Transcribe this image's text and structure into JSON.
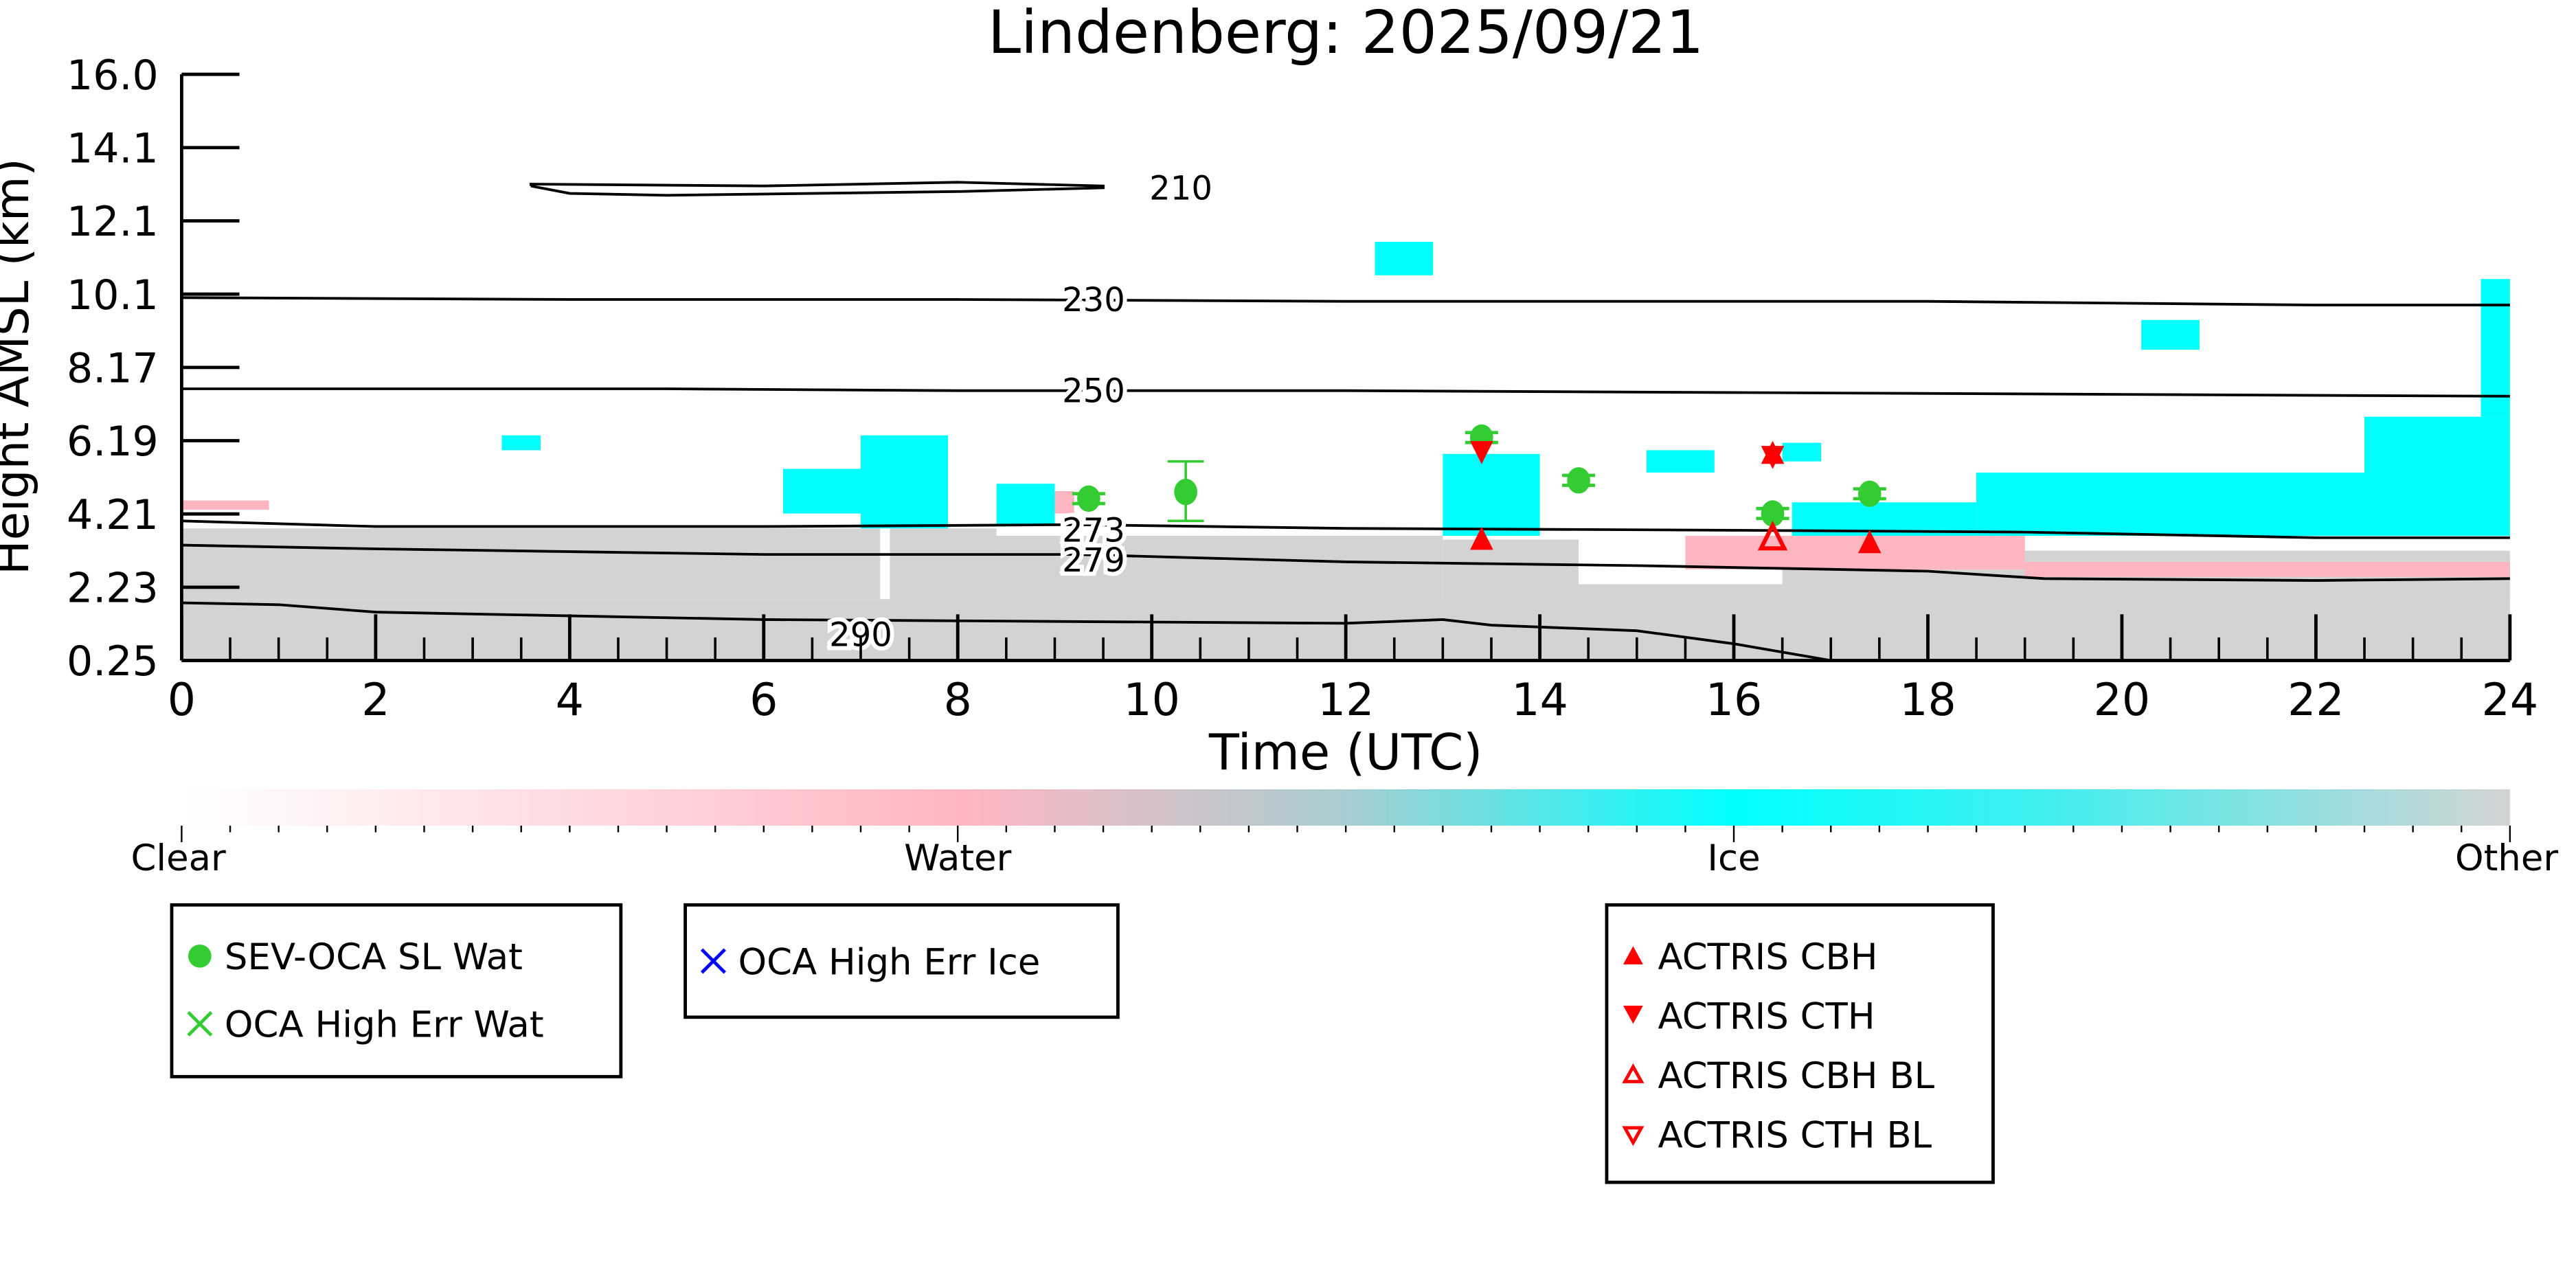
{
  "chart_data": {
    "type": "scatter",
    "title": "Lindenberg: 2025/09/21",
    "xlabel": "Time (UTC)",
    "ylabel": "Height AMSL (km)",
    "xlim": [
      0,
      24
    ],
    "ylim": [
      0.25,
      16.0
    ],
    "x_ticks": [
      "0",
      "2",
      "4",
      "6",
      "8",
      "10",
      "12",
      "14",
      "16",
      "18",
      "20",
      "22",
      "24"
    ],
    "y_ticks": [
      "0.25",
      "2.23",
      "4.21",
      "6.19",
      "8.17",
      "10.1",
      "12.1",
      "14.1",
      "16.0"
    ],
    "colorbar": {
      "labels": [
        "Clear",
        "Water",
        "Ice",
        "Other"
      ],
      "colors": [
        "#ffffff",
        "#ffb6c1",
        "#00ffff",
        "#d3d3d3"
      ]
    },
    "contours": [
      {
        "label": "210",
        "label_at": [
          10.3,
          12.95
        ],
        "points": [
          [
            3.6,
            13.0
          ],
          [
            4.0,
            12.8
          ],
          [
            5.0,
            12.75
          ],
          [
            8.0,
            12.85
          ],
          [
            9.5,
            12.95
          ],
          [
            9.5,
            13.0
          ],
          [
            8.0,
            13.1
          ],
          [
            6.0,
            13.0
          ],
          [
            3.6,
            13.05
          ],
          [
            3.6,
            13.0
          ]
        ]
      },
      {
        "label": "230",
        "label_at": [
          9.4,
          9.95
        ],
        "points": [
          [
            0,
            10.0
          ],
          [
            4,
            9.95
          ],
          [
            8,
            9.95
          ],
          [
            12,
            9.9
          ],
          [
            18,
            9.9
          ],
          [
            22,
            9.8
          ],
          [
            24,
            9.8
          ]
        ]
      },
      {
        "label": "250",
        "label_at": [
          9.4,
          7.5
        ],
        "points": [
          [
            0,
            7.55
          ],
          [
            5,
            7.55
          ],
          [
            8,
            7.5
          ],
          [
            12,
            7.5
          ],
          [
            16,
            7.45
          ],
          [
            20,
            7.4
          ],
          [
            24,
            7.35
          ]
        ]
      },
      {
        "label": "273",
        "label_at": [
          9.4,
          3.75
        ],
        "points": [
          [
            0,
            4.0
          ],
          [
            2,
            3.85
          ],
          [
            6,
            3.85
          ],
          [
            9.2,
            3.9
          ],
          [
            12,
            3.8
          ],
          [
            16,
            3.75
          ],
          [
            19,
            3.7
          ],
          [
            22,
            3.55
          ],
          [
            24,
            3.55
          ]
        ]
      },
      {
        "label": "279",
        "label_at": [
          9.4,
          2.95
        ],
        "points": [
          [
            0,
            3.35
          ],
          [
            2,
            3.25
          ],
          [
            6,
            3.1
          ],
          [
            9.2,
            3.1
          ],
          [
            12,
            2.9
          ],
          [
            15,
            2.8
          ],
          [
            18,
            2.65
          ],
          [
            19.2,
            2.45
          ],
          [
            22,
            2.4
          ],
          [
            24,
            2.45
          ]
        ]
      },
      {
        "label": "290",
        "label_at": [
          7.0,
          0.95
        ],
        "points": [
          [
            0,
            1.8
          ],
          [
            1,
            1.75
          ],
          [
            2,
            1.55
          ],
          [
            6,
            1.35
          ],
          [
            9,
            1.3
          ],
          [
            12,
            1.25
          ],
          [
            13,
            1.35
          ],
          [
            13.5,
            1.2
          ],
          [
            15,
            1.05
          ],
          [
            16,
            0.7
          ],
          [
            17,
            0.25
          ]
        ]
      }
    ],
    "cloud_regions": [
      {
        "cls": "other",
        "t": [
          0,
          24
        ],
        "h": [
          0.25,
          1.9
        ]
      },
      {
        "cls": "other",
        "t": [
          0,
          7.2
        ],
        "h": [
          1.9,
          3.8
        ]
      },
      {
        "cls": "other",
        "t": [
          7.3,
          8.4
        ],
        "h": [
          1.6,
          3.8
        ]
      },
      {
        "cls": "other",
        "t": [
          8.4,
          13.0
        ],
        "h": [
          1.6,
          3.6
        ]
      },
      {
        "cls": "other",
        "t": [
          13.0,
          14.4
        ],
        "h": [
          1.5,
          3.5
        ]
      },
      {
        "cls": "other",
        "t": [
          16.5,
          24
        ],
        "h": [
          1.6,
          3.2
        ]
      },
      {
        "cls": "other",
        "t": [
          14.4,
          16.5
        ],
        "h": [
          1.6,
          2.3
        ]
      },
      {
        "cls": "water",
        "t": [
          15.5,
          19
        ],
        "h": [
          2.7,
          3.6
        ]
      },
      {
        "cls": "water",
        "t": [
          19,
          24
        ],
        "h": [
          2.5,
          2.9
        ]
      },
      {
        "cls": "water",
        "t": [
          0,
          0.9
        ],
        "h": [
          4.3,
          4.55
        ]
      },
      {
        "cls": "water",
        "t": [
          8.5,
          9.2
        ],
        "h": [
          4.2,
          4.8
        ]
      },
      {
        "cls": "ice",
        "t": [
          7.0,
          7.9
        ],
        "h": [
          3.8,
          6.3
        ]
      },
      {
        "cls": "ice",
        "t": [
          6.2,
          7.0
        ],
        "h": [
          4.2,
          5.4
        ]
      },
      {
        "cls": "ice",
        "t": [
          8.4,
          9.0
        ],
        "h": [
          3.9,
          5.0
        ]
      },
      {
        "cls": "ice",
        "t": [
          13.0,
          14.0
        ],
        "h": [
          3.6,
          5.8
        ]
      },
      {
        "cls": "ice",
        "t": [
          15.1,
          15.8
        ],
        "h": [
          5.3,
          5.9
        ]
      },
      {
        "cls": "ice",
        "t": [
          16.6,
          18.5
        ],
        "h": [
          3.6,
          4.5
        ]
      },
      {
        "cls": "ice",
        "t": [
          18.5,
          22.5
        ],
        "h": [
          3.6,
          5.3
        ]
      },
      {
        "cls": "ice",
        "t": [
          22.5,
          24
        ],
        "h": [
          3.6,
          6.8
        ]
      },
      {
        "cls": "ice",
        "t": [
          23.7,
          24
        ],
        "h": [
          6.8,
          10.5
        ]
      },
      {
        "cls": "ice",
        "t": [
          16.5,
          16.9
        ],
        "h": [
          5.6,
          6.1
        ]
      },
      {
        "cls": "ice",
        "t": [
          3.3,
          3.7
        ],
        "h": [
          5.9,
          6.3
        ]
      },
      {
        "cls": "ice",
        "t": [
          12.3,
          12.9
        ],
        "h": [
          10.6,
          11.5
        ]
      },
      {
        "cls": "ice",
        "t": [
          20.2,
          20.8
        ],
        "h": [
          8.6,
          9.4
        ]
      }
    ],
    "series": [
      {
        "name": "SEV-OCA SL Wat",
        "marker": "circle",
        "color": "#33cc33",
        "points": [
          {
            "x": 9.35,
            "y": 4.6
          },
          {
            "x": 10.35,
            "y": 4.78,
            "err": [
              4.0,
              5.6
            ]
          },
          {
            "x": 13.4,
            "y": 6.24
          },
          {
            "x": 14.4,
            "y": 5.09
          },
          {
            "x": 16.4,
            "y": 4.2
          },
          {
            "x": 17.4,
            "y": 4.73
          }
        ]
      },
      {
        "name": "OCA High Err Wat",
        "marker": "x",
        "color": "#33cc33",
        "points": []
      },
      {
        "name": "OCA High Err Ice",
        "marker": "x",
        "color": "#0000ff",
        "points": []
      },
      {
        "name": "ACTRIS CBH",
        "marker": "triangle-up",
        "color": "#ff0000",
        "points": [
          {
            "x": 13.4,
            "y": 3.49
          },
          {
            "x": 16.4,
            "y": 5.8
          },
          {
            "x": 17.4,
            "y": 3.4
          }
        ]
      },
      {
        "name": "ACTRIS CTH",
        "marker": "triangle-down",
        "color": "#ff0000",
        "points": [
          {
            "x": 13.4,
            "y": 5.88
          },
          {
            "x": 16.4,
            "y": 5.75
          }
        ]
      },
      {
        "name": "ACTRIS CBH BL",
        "marker": "triangle-up-open",
        "color": "#ff0000",
        "points": [
          {
            "x": 16.4,
            "y": 3.53
          }
        ]
      },
      {
        "name": "ACTRIS CTH BL",
        "marker": "triangle-down-open",
        "color": "#ff0000",
        "points": []
      }
    ]
  }
}
